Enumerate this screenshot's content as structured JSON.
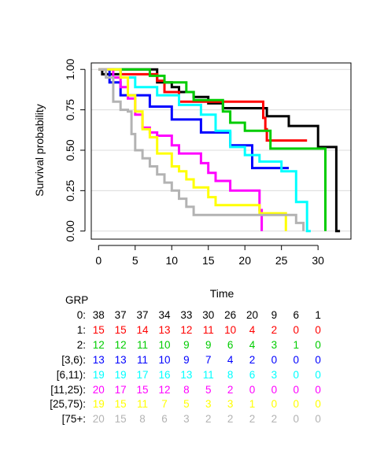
{
  "chart_data": {
    "type": "line",
    "step": true,
    "xlabel": "Time",
    "ylabel": "Survival probability",
    "xlim": [
      -1,
      34.5
    ],
    "ylim": [
      -0.05,
      1.04
    ],
    "xticks": [
      0,
      5,
      10,
      15,
      20,
      25,
      30
    ],
    "yticks": [
      0.0,
      0.25,
      0.5,
      0.75,
      1.0
    ],
    "ytick_labels": [
      "0.00",
      "0.25",
      "0.50",
      "0.75",
      "1.00"
    ],
    "grid": "horizontal",
    "series": [
      {
        "name": "0",
        "color": "#000000",
        "points": [
          [
            0,
            1.0
          ],
          [
            0.5,
            0.97
          ],
          [
            2,
            0.97
          ],
          [
            3,
            1.0
          ],
          [
            8,
            0.92
          ],
          [
            10,
            0.89
          ],
          [
            11,
            0.86
          ],
          [
            13,
            0.83
          ],
          [
            15,
            0.79
          ],
          [
            17,
            0.76
          ],
          [
            23,
            0.71
          ],
          [
            26,
            0.65
          ],
          [
            30,
            0.52
          ],
          [
            31.5,
            0.52
          ],
          [
            32.5,
            0.0
          ],
          [
            33,
            0.0
          ]
        ]
      },
      {
        "name": "1",
        "color": "#ff0000",
        "points": [
          [
            0,
            1.0
          ],
          [
            3,
            0.97
          ],
          [
            8,
            0.93
          ],
          [
            9,
            0.86
          ],
          [
            11,
            0.8
          ],
          [
            15,
            0.8
          ],
          [
            19,
            0.8
          ],
          [
            21,
            0.8
          ],
          [
            22.5,
            0.7
          ],
          [
            22.8,
            0.63
          ],
          [
            23,
            0.56
          ],
          [
            26,
            0.56
          ],
          [
            28.5,
            0.56
          ]
        ]
      },
      {
        "name": "2",
        "color": "#00cc00",
        "points": [
          [
            0,
            1.0
          ],
          [
            7,
            0.96
          ],
          [
            9,
            0.92
          ],
          [
            12,
            0.86
          ],
          [
            13,
            0.81
          ],
          [
            16,
            0.81
          ],
          [
            17,
            0.74
          ],
          [
            18,
            0.67
          ],
          [
            20,
            0.62
          ],
          [
            23,
            0.62
          ],
          [
            23.5,
            0.51
          ],
          [
            30,
            0.51
          ],
          [
            31,
            0.0
          ]
        ]
      },
      {
        "name": "[3,6)",
        "color": "#0000ff",
        "points": [
          [
            0,
            1.0
          ],
          [
            1.5,
            0.92
          ],
          [
            3,
            0.84
          ],
          [
            5,
            0.84
          ],
          [
            7,
            0.77
          ],
          [
            10,
            0.69
          ],
          [
            14,
            0.61
          ],
          [
            18,
            0.53
          ],
          [
            21,
            0.39
          ],
          [
            25,
            0.39
          ],
          [
            26,
            0.39
          ]
        ]
      },
      {
        "name": "[6,11)",
        "color": "#00ffff",
        "points": [
          [
            0,
            1.0
          ],
          [
            3,
            0.95
          ],
          [
            5,
            0.89
          ],
          [
            8,
            0.84
          ],
          [
            11,
            0.78
          ],
          [
            14,
            0.72
          ],
          [
            16,
            0.62
          ],
          [
            18,
            0.52
          ],
          [
            20,
            0.47
          ],
          [
            22,
            0.43
          ],
          [
            25,
            0.37
          ],
          [
            27,
            0.18
          ],
          [
            28.5,
            0.0
          ],
          [
            29,
            0.0
          ]
        ]
      },
      {
        "name": "[11,25)",
        "color": "#ff00ff",
        "points": [
          [
            0,
            1.0
          ],
          [
            2,
            0.95
          ],
          [
            3,
            0.89
          ],
          [
            4,
            0.82
          ],
          [
            5,
            0.72
          ],
          [
            6,
            0.64
          ],
          [
            7,
            0.61
          ],
          [
            8,
            0.59
          ],
          [
            10,
            0.53
          ],
          [
            11,
            0.48
          ],
          [
            14,
            0.42
          ],
          [
            15,
            0.36
          ],
          [
            16,
            0.31
          ],
          [
            18,
            0.25
          ],
          [
            20,
            0.25
          ],
          [
            22,
            0.13
          ],
          [
            22.3,
            0.0
          ]
        ]
      },
      {
        "name": "[25,75)",
        "color": "#ffff00",
        "points": [
          [
            0,
            1.0
          ],
          [
            3,
            0.95
          ],
          [
            4,
            0.84
          ],
          [
            5,
            0.74
          ],
          [
            6,
            0.63
          ],
          [
            7,
            0.58
          ],
          [
            8,
            0.48
          ],
          [
            10,
            0.4
          ],
          [
            11,
            0.37
          ],
          [
            12,
            0.32
          ],
          [
            13,
            0.27
          ],
          [
            15,
            0.21
          ],
          [
            16,
            0.16
          ],
          [
            20,
            0.16
          ],
          [
            22,
            0.11
          ],
          [
            25,
            0.11
          ],
          [
            25.6,
            0.0
          ]
        ]
      },
      {
        "name": "[75+",
        "color": "#b3b3b3",
        "points": [
          [
            0,
            1.0
          ],
          [
            1,
            0.95
          ],
          [
            2,
            0.8
          ],
          [
            3,
            0.75
          ],
          [
            4,
            0.74
          ],
          [
            4.5,
            0.6
          ],
          [
            5,
            0.5
          ],
          [
            6,
            0.45
          ],
          [
            7,
            0.4
          ],
          [
            8,
            0.35
          ],
          [
            9,
            0.3
          ],
          [
            10,
            0.25
          ],
          [
            11,
            0.2
          ],
          [
            12,
            0.15
          ],
          [
            13,
            0.1
          ],
          [
            15,
            0.1
          ],
          [
            20,
            0.1
          ],
          [
            25,
            0.1
          ],
          [
            27,
            0.05
          ],
          [
            28,
            0.0
          ]
        ]
      }
    ],
    "risk_table": {
      "title": "GRP",
      "times": [
        0,
        3,
        6,
        9,
        12,
        15,
        18,
        21,
        24,
        27,
        30
      ],
      "rows": [
        {
          "label": "0:",
          "color": "#000000",
          "values": [
            "38",
            "37",
            "37",
            "34",
            "33",
            "30",
            "26",
            "20",
            "9",
            "6",
            "1"
          ]
        },
        {
          "label": "1:",
          "color": "#ff0000",
          "values": [
            "15",
            "15",
            "14",
            "13",
            "12",
            "11",
            "10",
            "4",
            "2",
            "0",
            "0"
          ]
        },
        {
          "label": "2:",
          "color": "#00cc00",
          "values": [
            "12",
            "12",
            "11",
            "10",
            "9",
            "9",
            "6",
            "4",
            "3",
            "1",
            "0"
          ]
        },
        {
          "label": "[3,6):",
          "color": "#0000ff",
          "values": [
            "13",
            "13",
            "11",
            "10",
            "9",
            "7",
            "4",
            "2",
            "0",
            "0",
            "0"
          ]
        },
        {
          "label": "[6,11):",
          "color": "#00ffff",
          "values": [
            "19",
            "19",
            "17",
            "16",
            "13",
            "11",
            "8",
            "6",
            "3",
            "0",
            "0"
          ]
        },
        {
          "label": "[11,25):",
          "color": "#ff00ff",
          "values": [
            "20",
            "17",
            "15",
            "12",
            "8",
            "5",
            "2",
            "0",
            "0",
            "0",
            "0"
          ]
        },
        {
          "label": "[25,75):",
          "color": "#ffff00",
          "values": [
            "19",
            "15",
            "11",
            "7",
            "5",
            "3",
            "3",
            "1",
            "0",
            "0",
            "0"
          ]
        },
        {
          "label": "[75+:",
          "color": "#b3b3b3",
          "values": [
            "20",
            "15",
            "8",
            "6",
            "3",
            "2",
            "2",
            "2",
            "2",
            "0",
            "0"
          ]
        }
      ]
    }
  }
}
